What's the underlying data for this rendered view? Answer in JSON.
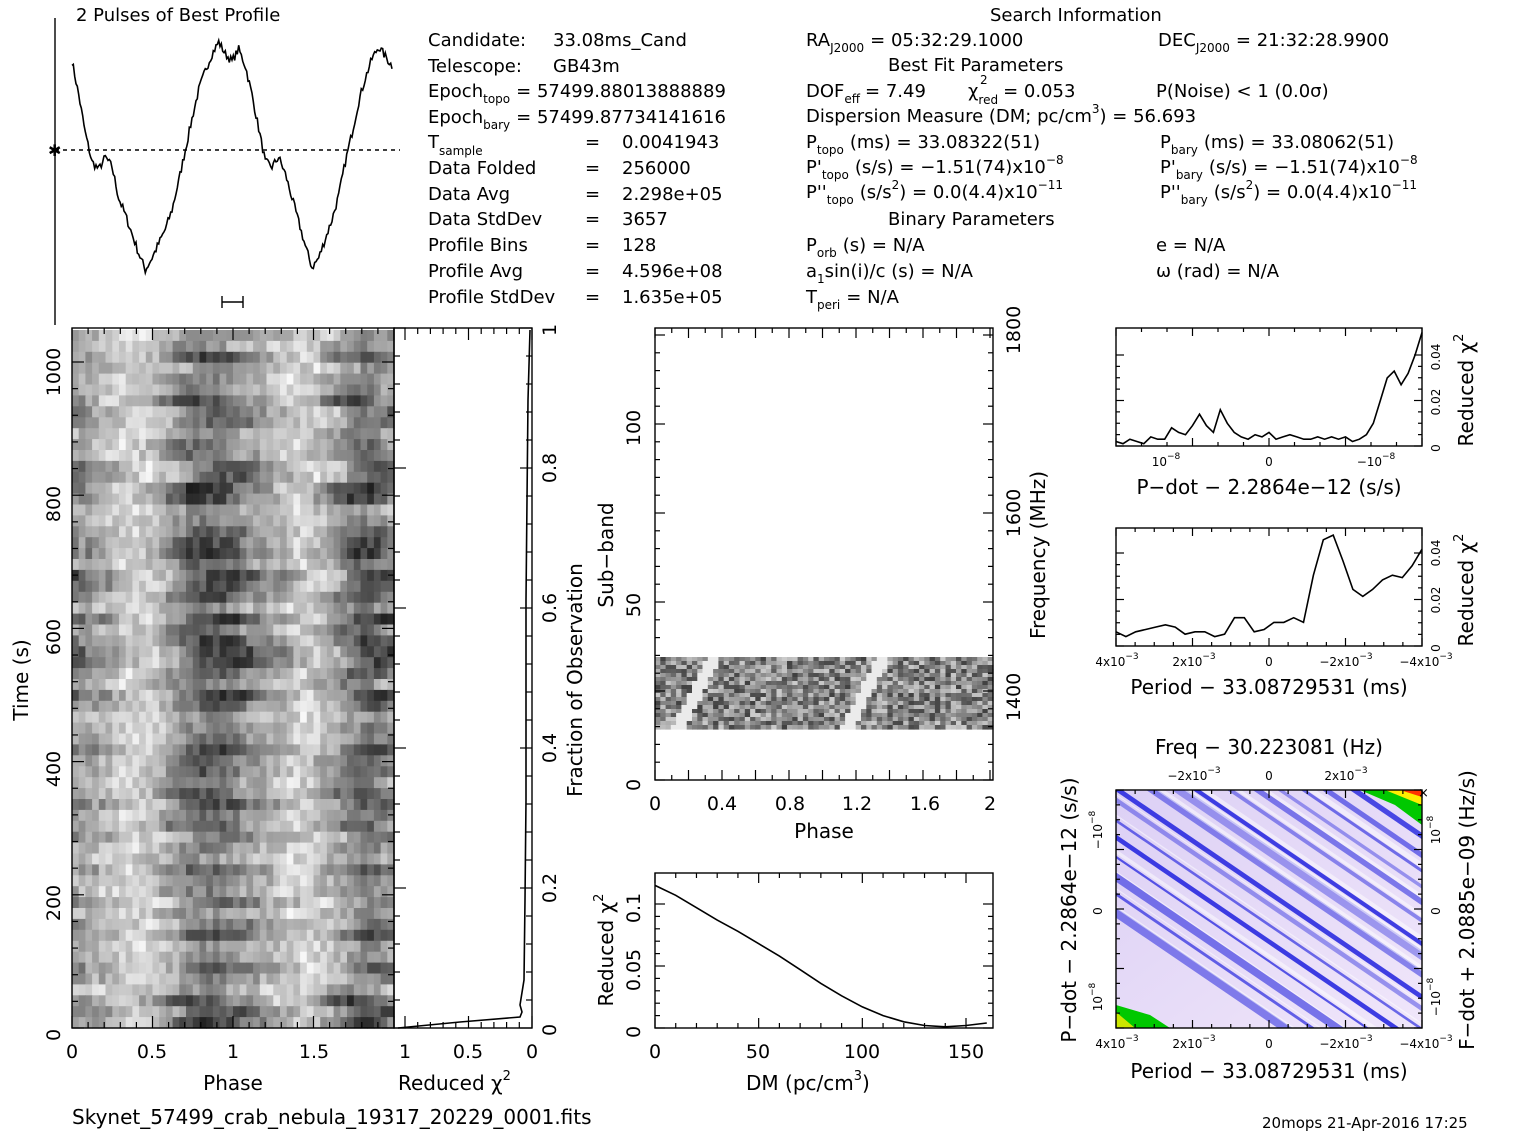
{
  "header": {
    "profile_title": "2 Pulses of Best Profile",
    "search_info_title": "Search Information",
    "best_fit_title": "Best Fit Parameters",
    "binary_title": "Binary Parameters",
    "col1": [
      [
        "Candidate:",
        "33.08ms_Cand"
      ],
      [
        "Telescope:",
        "GB43m"
      ],
      [
        "Epoch",
        "topo",
        "= 57499.88013888889"
      ],
      [
        "Epoch",
        "bary",
        "= 57499.87734141616"
      ],
      [
        "T",
        "sample",
        "=",
        "0.0041943"
      ],
      [
        "Data Folded",
        "=",
        "256000"
      ],
      [
        "Data Avg",
        "=",
        "2.298e+05"
      ],
      [
        "Data StdDev",
        "=",
        "3657"
      ],
      [
        "Profile Bins",
        "=",
        "128"
      ],
      [
        "Profile Avg",
        "=",
        "4.596e+08"
      ],
      [
        "Profile StdDev",
        "=",
        "1.635e+05"
      ]
    ],
    "ra": "RA",
    "ra_sub": "J2000",
    "ra_val": "= 05:32:29.1000",
    "dec": "DEC",
    "dec_sub": "J2000",
    "dec_val": "= 21:32:28.9900",
    "dof_line": "DOF",
    "dof_sub": "eff",
    "dof_val": "= 7.49",
    "chi_label": "χ",
    "chi_sub": "red",
    "chi_val": "= 0.053",
    "pnoise": "P(Noise) < 1   (0.0σ)",
    "dm_line": "Dispersion Measure (DM; pc/cm",
    "dm_sup": "3",
    "dm_val": ") = 56.693",
    "ptopo": "P",
    "ptopo_sub": "topo",
    "ptopo_val": "(ms) =  33.08322(51)",
    "pbary": "P",
    "pbary_sub": "bary",
    "pbary_val": "(ms) =  33.08062(51)",
    "pdtopo": "P'",
    "pdtopo_sub": "topo",
    "pdtopo_val": "(s/s) = −1.51(74)x10",
    "pdtopo_exp": "−8",
    "pdbary": "P'",
    "pdbary_sub": "bary",
    "pdbary_val": "(s/s) = −1.51(74)x10",
    "pdbary_exp": "−8",
    "pddtopo": "P''",
    "pddtopo_sub": "topo",
    "pddtopo_val": "(s/s",
    "pddtopo_val2": ") = 0.0(4.4)x10",
    "pddtopo_exp": "−11",
    "pddbary": "P''",
    "pddbary_sub": "bary",
    "pddbary_val": "(s/s",
    "pddbary_val2": ") = 0.0(4.4)x10",
    "pddbary_exp": "−11",
    "porb": "P",
    "porb_sub": "orb",
    "porb_val": "(s) = N/A",
    "e_val": "e = N/A",
    "a1": "a",
    "a1_sub": "1",
    "a1_val": "sin(i)/c (s) = N/A",
    "omega_val": "ω (rad) = N/A",
    "tperi": "T",
    "tperi_sub": "peri",
    "tperi_val": "= N/A"
  },
  "footer": {
    "filename": "Skynet_57499_crab_nebula_19317_20229_0001.fits",
    "stamp": "20mops 21-Apr-2016 17:25"
  },
  "axes": {
    "time_ylabel": "Time (s)",
    "time_xlabel": "Phase",
    "time_yticks": [
      "0",
      "200",
      "400",
      "600",
      "800",
      "1000"
    ],
    "time_xticks": [
      "0",
      "0.5",
      "1",
      "1.5"
    ],
    "redchi_xlabel": "Reduced χ",
    "redchi_xlabel_sup": "2",
    "redchi_xticks": [
      "1",
      "0.5",
      "0"
    ],
    "frac_ylabel": "Fraction of Observation",
    "frac_yticks": [
      "0",
      "0.2",
      "0.4",
      "0.6",
      "0.8",
      "1"
    ],
    "subband_ylabel": "Sub−band",
    "subband_yticks": [
      "0",
      "50",
      "100"
    ],
    "subband_xlabel": "Phase",
    "subband_xticks": [
      "0",
      "0.4",
      "0.8",
      "1.2",
      "1.6",
      "2"
    ],
    "freq_ylabel": "Frequency (MHz)",
    "freq_yticks": [
      "1400",
      "1600",
      "1800"
    ],
    "dm_xlabel": "DM (pc/cm",
    "dm_xlabel_sup": "3",
    "dm_xlabel_end": ")",
    "dm_ylabel": "Reduced χ",
    "dm_ylabel_sup": "2",
    "dm_xticks": [
      "0",
      "50",
      "100",
      "150"
    ],
    "dm_yticks": [
      "0",
      "0.05",
      "0.1"
    ],
    "pdot_xlabel": "P−dot − 2.2864e−12 (s/s)",
    "pdot_ylabel": "Reduced χ",
    "pdot_ylabel_sup": "2",
    "pdot_yticks": [
      "0",
      "0.02",
      "0.04"
    ],
    "pdot_xticks": [
      "10",
      "0",
      "−10"
    ],
    "pdot_xticks_exp": "−8",
    "period_xlabel": "Period − 33.08729531 (ms)",
    "period_ylabel": "Reduced χ",
    "period_ylabel_sup": "2",
    "period_yticks": [
      "0",
      "0.02",
      "0.04"
    ],
    "period_xticks": [
      "4x10",
      "2x10",
      "0",
      "−2x10",
      "−4x10"
    ],
    "period_xticks_exp": "−3",
    "map_top_label": "Freq − 30.223081 (Hz)",
    "map_top_ticks": [
      "−2x10",
      "0",
      "2x10"
    ],
    "map_top_ticks_exp": "−3",
    "map_xlabel": "Period − 33.08729531 (ms)",
    "map_xticks": [
      "4x10",
      "2x10",
      "0",
      "−2x10",
      "−4x10"
    ],
    "map_xticks_exp": "−3",
    "map_ylabel": "P−dot − 2.2864e−12 (s/s)",
    "map_yticks": [
      "10",
      "0",
      "−10"
    ],
    "map_yticks_exp": "−8",
    "map_rlabel": "F−dot + 2.0885e−09 (Hz/s)",
    "map_rticks": [
      "−10",
      "0",
      "10"
    ],
    "map_rticks_exp": "−8"
  },
  "colors": {
    "map_base": "#e9d2f2",
    "map_stripe": "#2a2ae0",
    "map_hot": "#00c800",
    "map_warm": "#ffee00",
    "map_peak": "#ff3300"
  },
  "chart_data": [
    {
      "type": "line",
      "title": "2 Pulses of Best Profile",
      "x": "phase 0-2",
      "values": [
        0.92,
        0.78,
        0.62,
        0.5,
        0.47,
        0.52,
        0.48,
        0.35,
        0.28,
        0.2,
        0.12,
        0.05,
        0.1,
        0.16,
        0.22,
        0.3,
        0.42,
        0.55,
        0.68,
        0.8,
        0.88,
        0.95,
        1.0,
        0.95,
        0.92,
        0.97,
        0.9,
        0.78,
        0.64,
        0.5,
        0.48,
        0.52,
        0.45,
        0.35,
        0.25,
        0.15,
        0.06,
        0.1,
        0.18,
        0.26,
        0.36,
        0.5,
        0.62,
        0.75,
        0.85,
        0.93,
        0.98,
        0.94,
        0.9
      ],
      "baseline": 0.5
    },
    {
      "type": "line",
      "xlabel": "DM (pc/cm3)",
      "ylabel": "Reduced χ2",
      "x": [
        0,
        10,
        20,
        30,
        40,
        50,
        60,
        70,
        80,
        90,
        100,
        110,
        120,
        130,
        140,
        150,
        160
      ],
      "values": [
        0.115,
        0.107,
        0.097,
        0.087,
        0.078,
        0.068,
        0.058,
        0.047,
        0.036,
        0.026,
        0.017,
        0.01,
        0.005,
        0.002,
        0.001,
        0.002,
        0.004
      ],
      "xlim": [
        0,
        163
      ],
      "ylim": [
        0,
        0.125
      ]
    },
    {
      "type": "line",
      "xlabel": "P−dot − 2.2864e−12 (s/s)",
      "ylabel": "Reduced χ2",
      "values": [
        0.002,
        0.001,
        0.003,
        0.002,
        0.001,
        0.004,
        0.003,
        0.003,
        0.008,
        0.006,
        0.005,
        0.009,
        0.014,
        0.009,
        0.006,
        0.016,
        0.01,
        0.006,
        0.004,
        0.003,
        0.005,
        0.004,
        0.006,
        0.003,
        0.004,
        0.005,
        0.004,
        0.003,
        0.003,
        0.004,
        0.003,
        0.004,
        0.003,
        0.004,
        0.002,
        0.003,
        0.005,
        0.01,
        0.02,
        0.03,
        0.033,
        0.027,
        0.032,
        0.04,
        0.05
      ],
      "ylim": [
        0,
        0.052
      ]
    },
    {
      "type": "line",
      "xlabel": "Period − 33.08729531 (ms)",
      "ylabel": "Reduced χ2",
      "values": [
        0.006,
        0.004,
        0.006,
        0.007,
        0.008,
        0.009,
        0.008,
        0.005,
        0.006,
        0.006,
        0.004,
        0.005,
        0.012,
        0.012,
        0.006,
        0.007,
        0.01,
        0.01,
        0.012,
        0.01,
        0.03,
        0.045,
        0.047,
        0.036,
        0.024,
        0.021,
        0.024,
        0.028,
        0.03,
        0.029,
        0.034,
        0.041
      ],
      "ylim": [
        0,
        0.05
      ]
    }
  ]
}
